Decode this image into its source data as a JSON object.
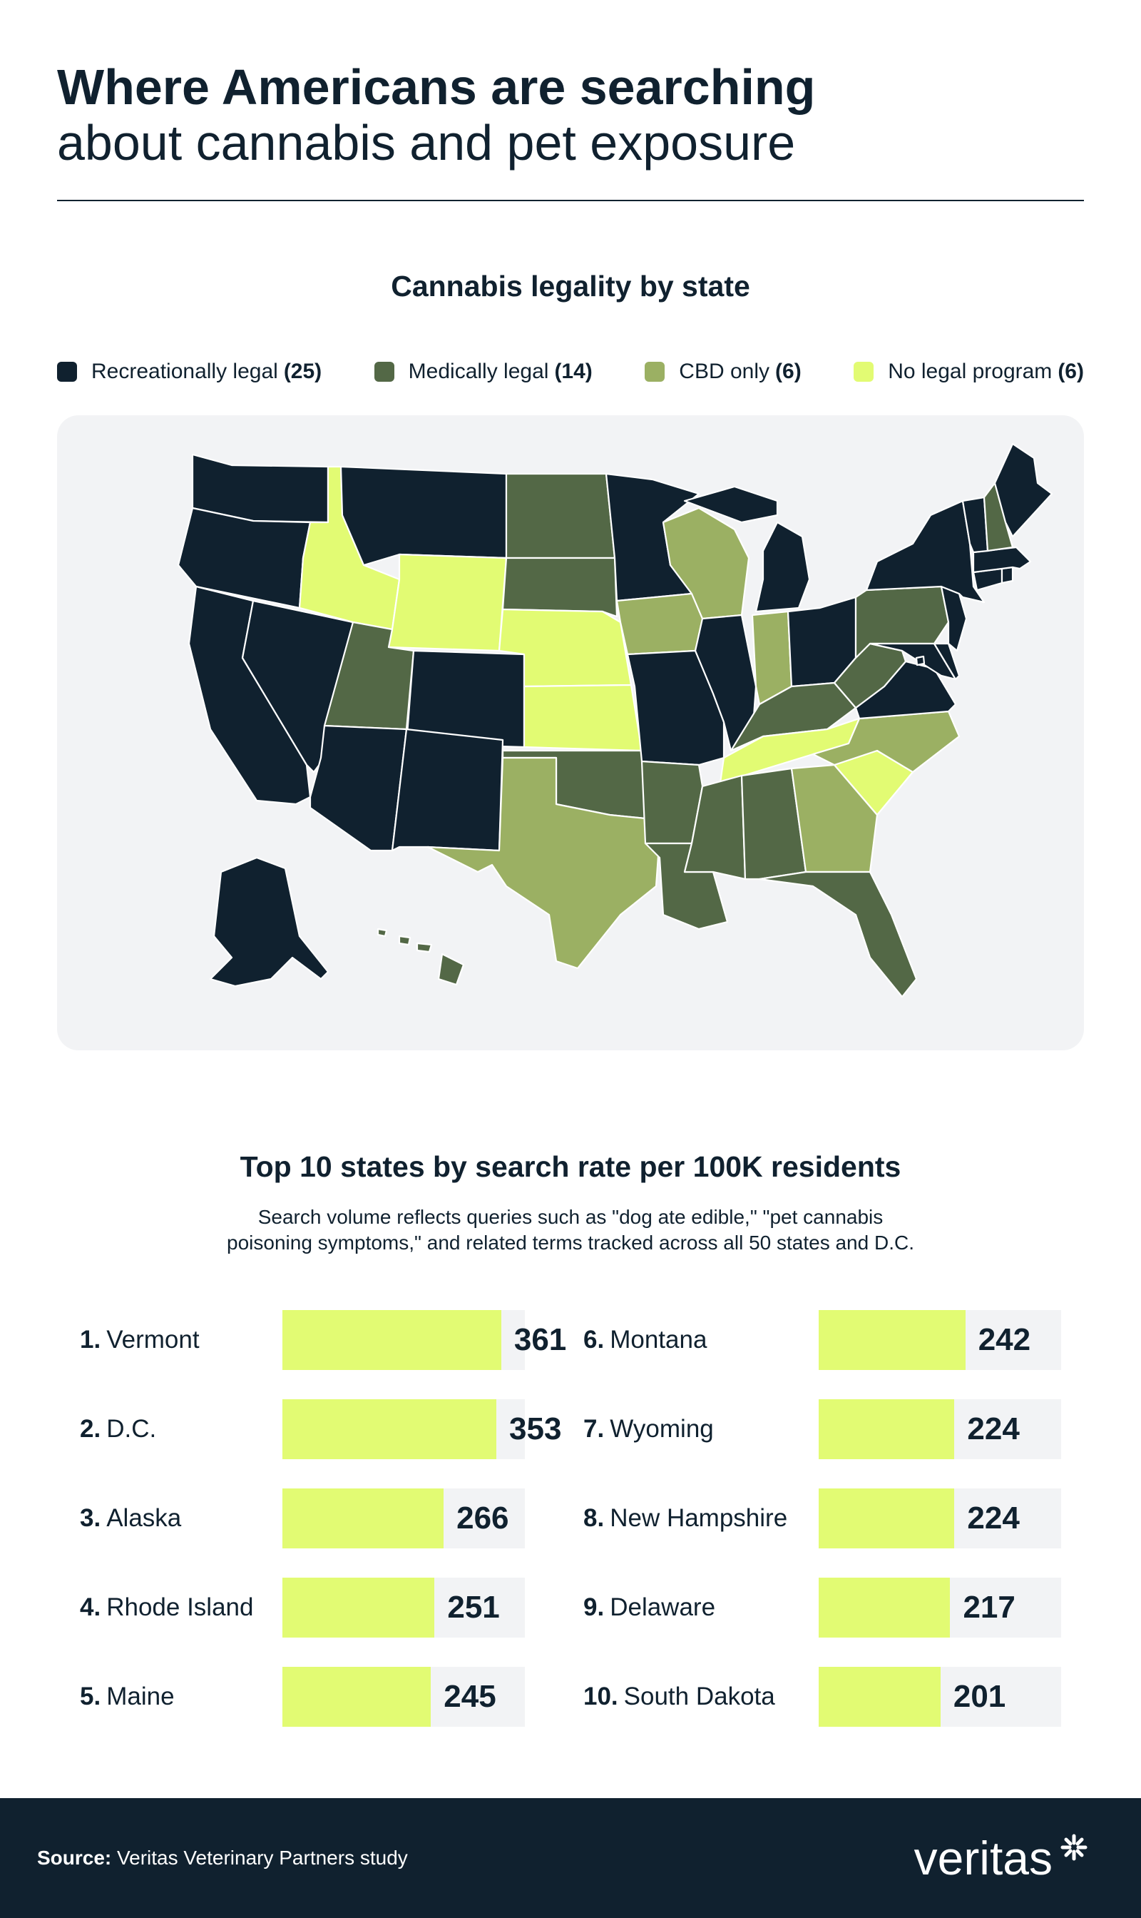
{
  "header": {
    "title_line1": "Where Americans are searching",
    "title_line2": "about cannabis and pet exposure"
  },
  "map": {
    "title": "Cannabis legality by state",
    "legend": [
      {
        "label": "Recreationally legal",
        "count": "(25)",
        "color": "#10212f"
      },
      {
        "label": "Medically legal",
        "count": "(14)",
        "color": "#536846"
      },
      {
        "label": "CBD only",
        "count": "(6)",
        "color": "#9bb063"
      },
      {
        "label": "No legal program",
        "count": "(6)",
        "color": "#e2fb73"
      }
    ],
    "states": {
      "recreational": [
        "WA",
        "OR",
        "CA",
        "NV",
        "AZ",
        "MT",
        "CO",
        "NM",
        "MN",
        "MO",
        "IL",
        "MI",
        "OH",
        "VA",
        "MD",
        "DE",
        "NJ",
        "NY",
        "CT",
        "RI",
        "MA",
        "VT",
        "ME",
        "AK",
        "DC"
      ],
      "medical": [
        "UT",
        "ND",
        "SD",
        "OK",
        "AR",
        "LA",
        "MS",
        "AL",
        "FL",
        "KY",
        "WV",
        "PA",
        "NH",
        "HI"
      ],
      "cbd_only": [
        "WI",
        "IA",
        "IN",
        "TX",
        "GA",
        "NC"
      ],
      "no_program": [
        "ID",
        "WY",
        "NE",
        "KS",
        "TN",
        "SC"
      ]
    }
  },
  "chart_data": {
    "type": "bar",
    "title": "Top 10 states by search rate per 100K residents",
    "subtitle_line1": "Search volume reflects queries such as \"dog ate edible,\" \"pet cannabis",
    "subtitle_line2": "poisoning symptoms,\" and related terms tracked across all 50 states and D.C.",
    "categories": [
      "Vermont",
      "D.C.",
      "Alaska",
      "Rhode Island",
      "Maine",
      "Montana",
      "Wyoming",
      "New Hampshire",
      "Delaware",
      "South Dakota"
    ],
    "ranks": [
      "1.",
      "2.",
      "3.",
      "4.",
      "5.",
      "6.",
      "7.",
      "8.",
      "9.",
      "10."
    ],
    "values": [
      361,
      353,
      266,
      251,
      245,
      242,
      224,
      224,
      217,
      201
    ],
    "bar_color": "#e2fb73",
    "track_color": "#f2f3f5"
  },
  "footer": {
    "source_label": "Source:",
    "source_text": "Veritas Veterinary Partners study",
    "brand": "veritas"
  }
}
